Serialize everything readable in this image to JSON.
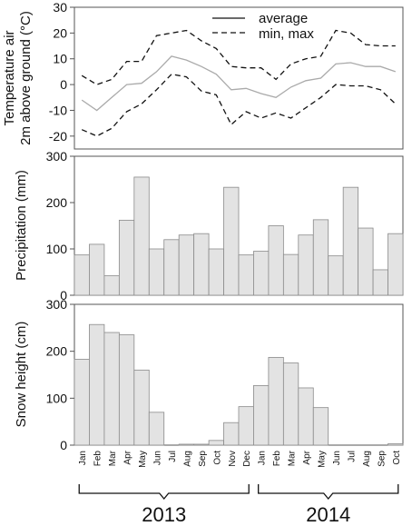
{
  "months": [
    "Jan",
    "Feb",
    "Mar",
    "Apr",
    "May",
    "Jun",
    "Jul",
    "Aug",
    "Sep",
    "Oct",
    "Nov",
    "Dec",
    "Jan",
    "Feb",
    "Mar",
    "Apr",
    "May",
    "Jun",
    "Jul",
    "Aug",
    "Sep",
    "Oct"
  ],
  "years": [
    {
      "label": "2013",
      "from": 0,
      "to": 11
    },
    {
      "label": "2014",
      "from": 12,
      "to": 21
    }
  ],
  "colors": {
    "bar_fill": "#e3e3e3",
    "bar_stroke": "#8a8a8a",
    "avg_line": "#aaaaaa",
    "minmax_line": "#111111",
    "axis": "#555555"
  },
  "chart_data": [
    {
      "type": "line",
      "ylabel_line1": "Temperature air",
      "ylabel_line2": "2m above ground (°C)",
      "ylim": [
        -25,
        30
      ],
      "yticks": [
        -20,
        -10,
        0,
        10,
        20,
        30
      ],
      "legend": {
        "placement": "top-right",
        "entries": [
          "average",
          "min, max"
        ]
      },
      "series": [
        {
          "name": "average",
          "values": [
            -6,
            -10,
            -5,
            0,
            0.5,
            5,
            11,
            9.5,
            7,
            4,
            -2,
            -1.5,
            -3.5,
            -5,
            -1,
            1.5,
            2.5,
            8,
            8.5,
            7,
            7,
            5
          ]
        },
        {
          "name": "max",
          "values": [
            3.5,
            0,
            2,
            9,
            9,
            19,
            20,
            21,
            17,
            14,
            7,
            6.5,
            6.5,
            2,
            8,
            10,
            11,
            21,
            20,
            15.5,
            15,
            15
          ]
        },
        {
          "name": "min",
          "values": [
            -17.5,
            -20,
            -17,
            -10.5,
            -7.5,
            -2,
            4,
            3,
            -2.5,
            -4,
            -15.5,
            -10.5,
            -13,
            -11,
            -13,
            -9,
            -5,
            0,
            -0.5,
            -0.5,
            -2,
            -7.5
          ]
        }
      ]
    },
    {
      "type": "bar",
      "ylabel": "Precipitation (mm)",
      "ylim": [
        0,
        300
      ],
      "yticks": [
        0,
        100,
        200,
        300
      ],
      "values": [
        87,
        110,
        42,
        162,
        255,
        100,
        120,
        130,
        133,
        100,
        233,
        87,
        95,
        150,
        88,
        130,
        163,
        85,
        233,
        145,
        55,
        133
      ]
    },
    {
      "type": "bar",
      "ylabel": "Snow height (cm)",
      "ylim": [
        0,
        300
      ],
      "yticks": [
        0,
        100,
        200,
        300
      ],
      "values": [
        183,
        257,
        240,
        235,
        160,
        70,
        0,
        2,
        2,
        10,
        48,
        82,
        127,
        187,
        175,
        122,
        80,
        0,
        0,
        0,
        0,
        3
      ]
    }
  ]
}
